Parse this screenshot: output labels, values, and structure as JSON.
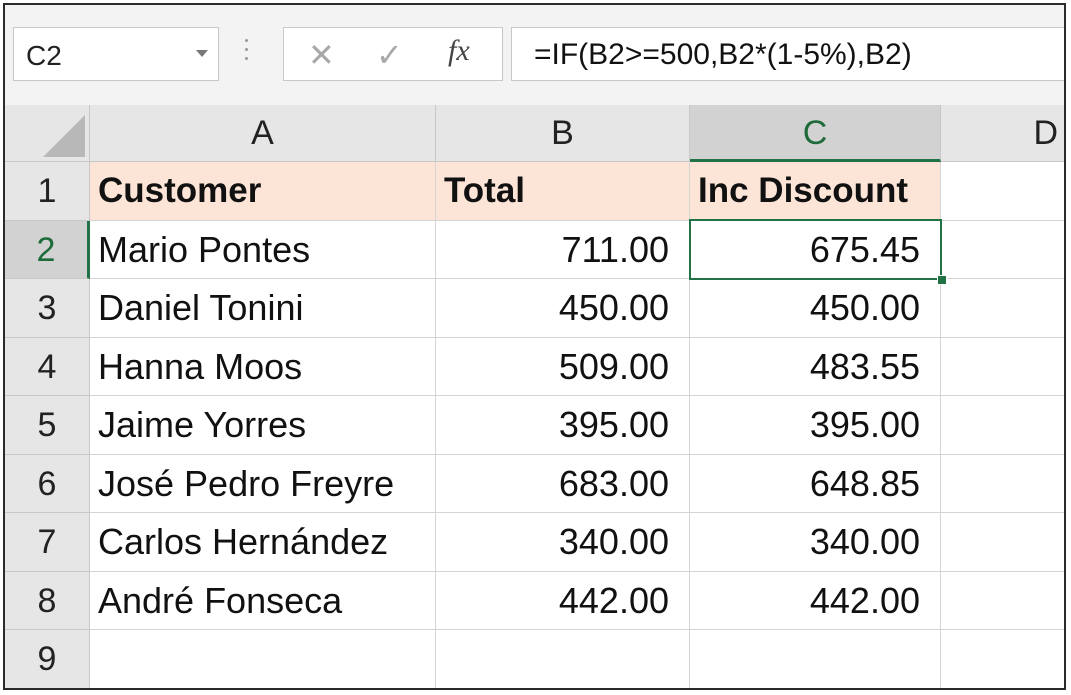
{
  "formula_bar": {
    "name_box": "C2",
    "formula": "=IF(B2>=500,B2*(1-5%),B2)",
    "cancel_icon": "✕",
    "enter_icon": "✓",
    "fx_label": "fx"
  },
  "grid": {
    "columns": [
      "A",
      "B",
      "C",
      "D"
    ],
    "rows": [
      "1",
      "2",
      "3",
      "4",
      "5",
      "6",
      "7",
      "8",
      "9"
    ],
    "header_row": {
      "customer": "Customer",
      "total": "Total",
      "discount": "Inc Discount"
    },
    "data": [
      {
        "customer": "Mario Pontes",
        "total": "711.00",
        "discount": "675.45"
      },
      {
        "customer": "Daniel Tonini",
        "total": "450.00",
        "discount": "450.00"
      },
      {
        "customer": "Hanna Moos",
        "total": "509.00",
        "discount": "483.55"
      },
      {
        "customer": "Jaime Yorres",
        "total": "395.00",
        "discount": "395.00"
      },
      {
        "customer": "José Pedro Freyre",
        "total": "683.00",
        "discount": "648.85"
      },
      {
        "customer": "Carlos Hernández",
        "total": "340.00",
        "discount": "340.00"
      },
      {
        "customer": "André Fonseca",
        "total": "442.00",
        "discount": "442.00"
      }
    ],
    "selected_cell": "C2"
  },
  "colors": {
    "header_fill": "#fce4d6",
    "selection": "#217346"
  }
}
